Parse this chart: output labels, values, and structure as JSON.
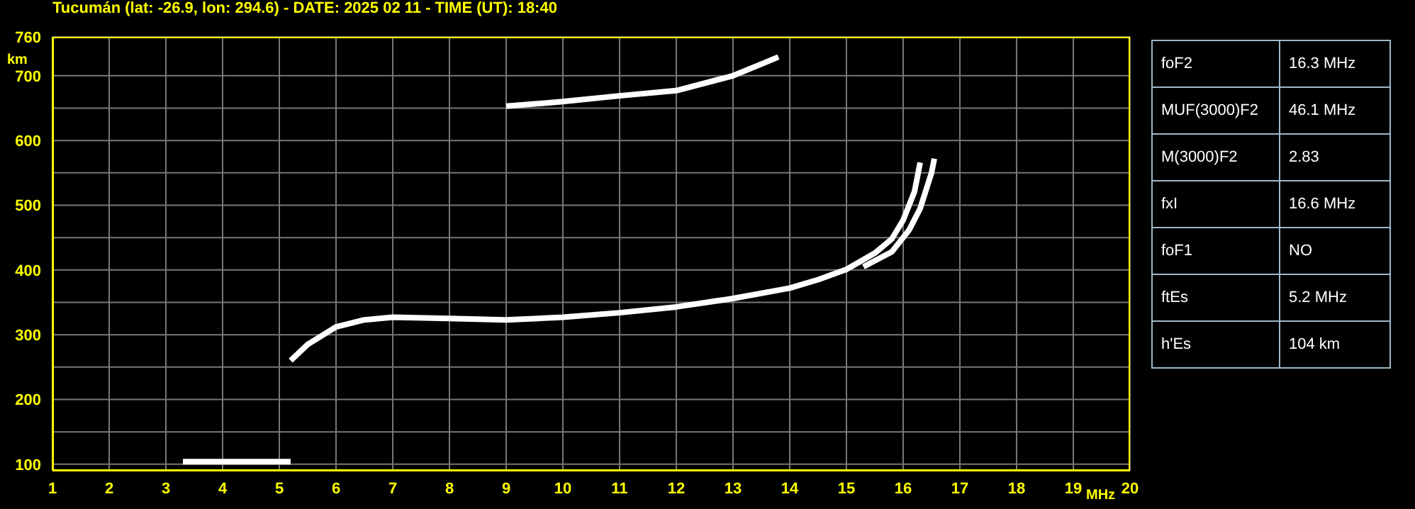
{
  "chart_data": [
    {
      "type": "line",
      "title": "Tucumán (lat: -26.9, lon: 294.6) - DATE: 2025 02 11 - TIME (UT): 18:40",
      "xlabel": "MHz",
      "ylabel": "km",
      "series": [
        {
          "color": "#ffffff",
          "x": [
            3.3,
            3.8,
            4.3,
            4.8,
            5.2
          ],
          "values": [
            104,
            104,
            104,
            104,
            104
          ]
        },
        {
          "color": "#ffffff",
          "x": [
            5.2,
            5.5,
            6,
            6.5,
            7,
            8,
            9,
            10,
            11,
            12,
            13,
            14,
            14.5,
            15,
            15.5,
            15.8,
            16,
            16.2,
            16.3
          ],
          "values": [
            260,
            285,
            312,
            323,
            327,
            325,
            323,
            327,
            334,
            343,
            356,
            372,
            385,
            401,
            426,
            448,
            477,
            521,
            566
          ]
        },
        {
          "color": "#ffffff",
          "x": [
            15.3,
            15.8,
            16.1,
            16.3,
            16.5,
            16.55
          ],
          "values": [
            405,
            428,
            461,
            495,
            550,
            572
          ]
        },
        {
          "color": "#ffffff",
          "x": [
            9,
            10,
            11,
            12,
            13,
            13.5,
            13.8
          ],
          "values": [
            653,
            660,
            669,
            677,
            700,
            718,
            729
          ]
        }
      ],
      "xlim": [
        1,
        20
      ],
      "xticks": [
        1,
        2,
        3,
        4,
        5,
        6,
        7,
        8,
        9,
        10,
        11,
        12,
        13,
        14,
        15,
        16,
        17,
        18,
        19,
        20
      ],
      "ylim": [
        90,
        760
      ],
      "yticks": [
        100,
        {
          "value": 150,
          "label": null
        },
        200,
        {
          "value": 250,
          "label": null
        },
        300,
        {
          "value": 350,
          "label": null
        },
        400,
        {
          "value": 450,
          "label": null
        },
        500,
        {
          "value": 550,
          "label": null
        },
        600,
        {
          "value": 650,
          "label": null
        },
        700,
        760
      ],
      "grid": true,
      "marker": "none",
      "line_style": "solid"
    },
    {
      "type": "other",
      "categories": [
        "foF2",
        "MUF(3000)F2",
        "M(3000)F2",
        "fxI",
        "foF1",
        "ftEs",
        "h'Es"
      ],
      "annotations": [
        "16.3 MHz",
        "46.1 MHz",
        "2.83",
        "16.6 MHz",
        "NO",
        "5.2 MHz",
        "104 km"
      ]
    }
  ]
}
